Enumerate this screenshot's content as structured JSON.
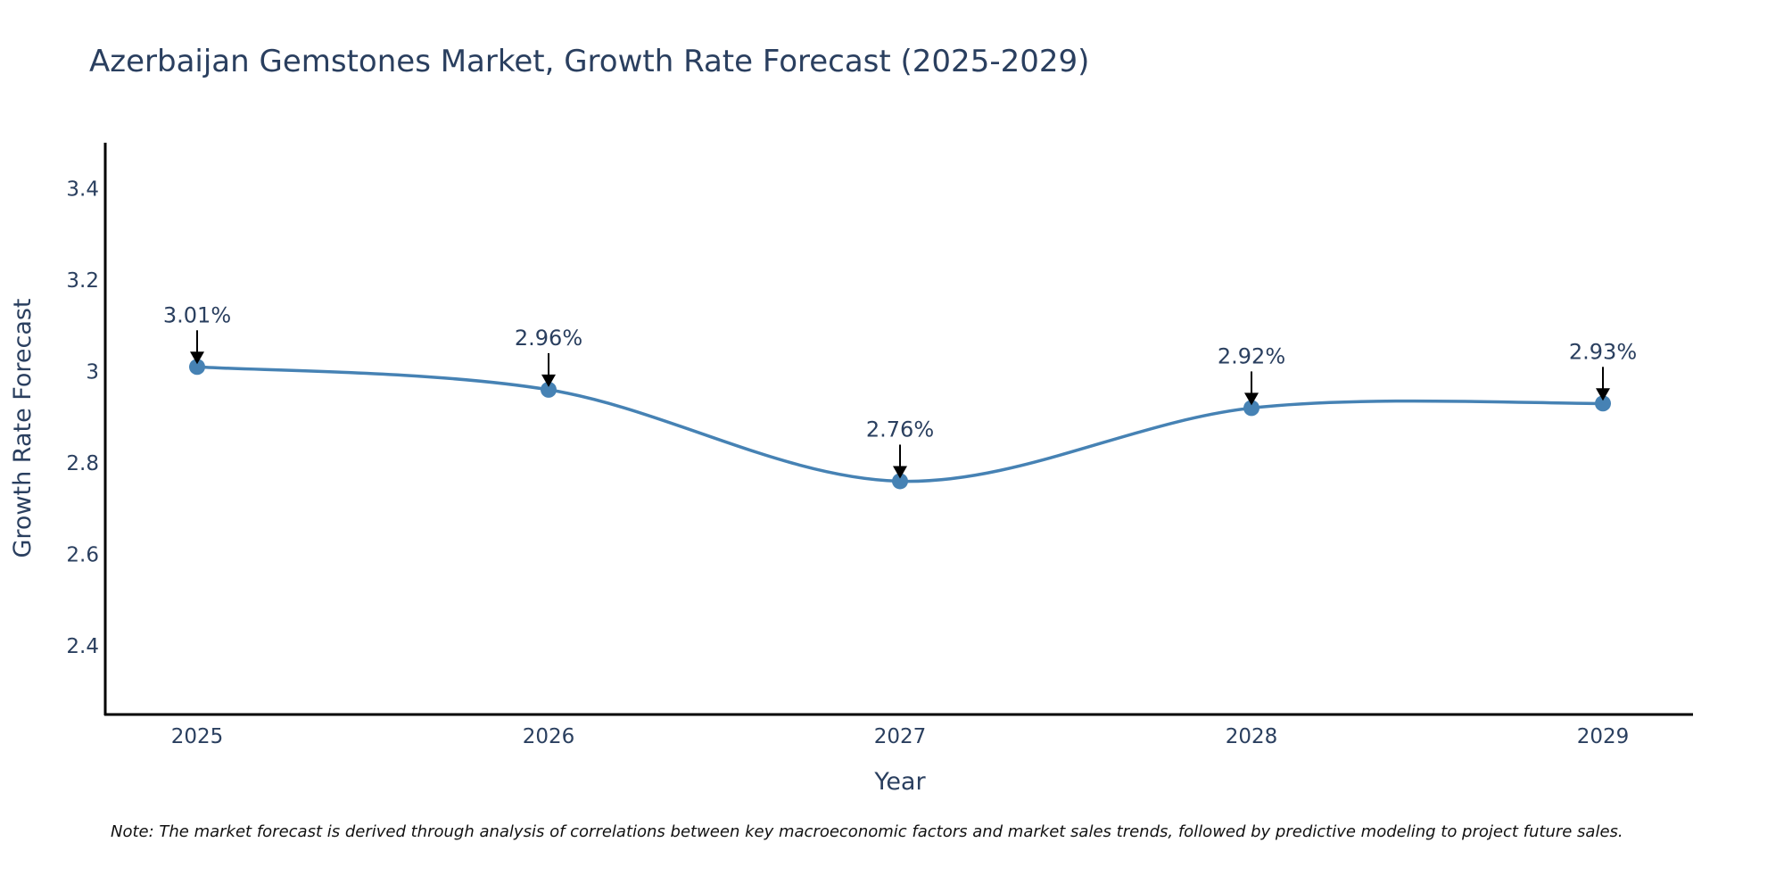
{
  "chart_data": {
    "type": "line",
    "title": "Azerbaijan Gemstones Market, Growth Rate Forecast (2025-2029)",
    "xlabel": "Year",
    "ylabel": "Growth Rate Forecast",
    "categories": [
      "2025",
      "2026",
      "2027",
      "2028",
      "2029"
    ],
    "values": [
      3.01,
      2.96,
      2.76,
      2.92,
      2.93
    ],
    "data_labels": [
      "3.01%",
      "2.96%",
      "2.76%",
      "2.92%",
      "2.93%"
    ],
    "ylim": [
      2.25,
      3.5
    ],
    "yticks": [
      2.4,
      2.6,
      2.8,
      3.0,
      3.2,
      3.4
    ],
    "ytick_labels": [
      "2.4",
      "2.6",
      "2.8",
      "3",
      "3.2",
      "3.4"
    ],
    "grid": false,
    "line_color": "#4682b4",
    "note": "Note: The market forecast is derived through analysis of correlations between key macroeconomic factors and market sales trends, followed by predictive modeling to project future sales."
  }
}
